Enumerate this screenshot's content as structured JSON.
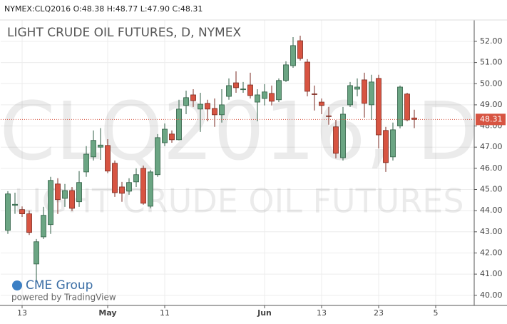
{
  "chart_data": {
    "type": "candlestick",
    "header": "NYMEX:CLQ2016 O:48.38 H:48.77 L:47.90 C:48.31",
    "title": "LIGHT CRUDE OIL FUTURES, D, NYMEX",
    "watermark": "CLQ2016, D",
    "watermark_subtitle": "LIGHT CRUDE OIL FUTURES",
    "brand": "CME Group",
    "powered_by": "powered by TradingView",
    "up_color": "#6ba583",
    "down_color": "#d75442",
    "grid": true,
    "open": [
      43.07,
      44.25,
      44.05,
      43.85,
      41.48,
      42.76,
      43.34,
      45.26,
      44.58,
      44.95,
      44.42,
      45.83,
      46.54,
      47.0,
      47.08,
      46.24,
      45.12,
      44.92,
      45.36,
      46.0,
      44.21,
      45.7,
      47.21,
      47.62,
      47.35,
      48.97,
      49.47,
      48.8,
      49.07,
      48.83,
      48.53,
      49.4,
      50.04,
      49.73,
      49.94,
      49.13,
      49.3,
      49.54,
      49.24,
      50.15,
      50.85,
      52.03,
      51.02,
      49.52,
      49.13,
      48.48,
      47.96,
      46.5,
      49.0,
      49.74,
      50.18,
      49.0,
      50.25,
      47.79,
      46.54,
      48.0,
      49.51,
      48.38
    ],
    "high": [
      44.92,
      44.85,
      44.2,
      44.0,
      42.66,
      44.18,
      45.6,
      45.53,
      45.26,
      45.12,
      45.87,
      47.05,
      47.79,
      47.9,
      47.38,
      46.37,
      45.36,
      45.53,
      46.0,
      46.13,
      45.93,
      47.62,
      48.12,
      47.79,
      49.24,
      49.67,
      49.74,
      49.57,
      49.24,
      49.3,
      49.74,
      50.25,
      50.58,
      50.08,
      50.52,
      49.74,
      49.98,
      49.91,
      50.25,
      51.06,
      52.2,
      52.27,
      51.16,
      49.91,
      49.3,
      48.9,
      48.29,
      48.9,
      50.08,
      50.25,
      50.52,
      50.42,
      50.42,
      47.96,
      48.16,
      49.91,
      49.57,
      48.77
    ],
    "low": [
      42.9,
      43.85,
      43.7,
      42.85,
      40.64,
      42.66,
      42.9,
      43.84,
      44.18,
      43.98,
      44.18,
      45.6,
      46.37,
      46.4,
      45.77,
      44.65,
      44.42,
      44.75,
      45.12,
      44.28,
      44.11,
      45.6,
      47.05,
      47.21,
      47.32,
      48.56,
      48.9,
      47.72,
      48.22,
      47.96,
      48.16,
      49.24,
      49.57,
      49.57,
      49.3,
      48.22,
      48.97,
      48.97,
      49.13,
      50.08,
      50.75,
      51.09,
      49.4,
      48.73,
      48.56,
      48.06,
      46.47,
      46.37,
      48.9,
      49.4,
      48.4,
      48.29,
      46.94,
      45.83,
      46.37,
      47.89,
      48.22,
      47.9
    ],
    "close": [
      44.79,
      44.3,
      43.85,
      42.97,
      42.53,
      43.78,
      45.43,
      44.52,
      44.95,
      44.11,
      45.33,
      46.67,
      47.32,
      47.1,
      45.87,
      44.85,
      44.82,
      45.33,
      45.7,
      44.35,
      45.83,
      47.45,
      47.85,
      47.35,
      48.8,
      49.34,
      49.2,
      49.03,
      48.8,
      48.53,
      49.0,
      49.91,
      49.81,
      49.75,
      49.44,
      49.47,
      49.61,
      49.17,
      50.15,
      50.89,
      51.8,
      51.19,
      49.64,
      49.5,
      48.97,
      48.46,
      46.71,
      48.56,
      49.91,
      49.84,
      49.07,
      50.08,
      47.58,
      46.27,
      47.82,
      49.84,
      48.29,
      48.31
    ],
    "xlim": [
      -1,
      65.4
    ],
    "xticks": [
      {
        "value": 2,
        "label": "13"
      },
      {
        "value": 14,
        "label": "May"
      },
      {
        "value": 22,
        "label": "11"
      },
      {
        "value": 36,
        "label": "Jun"
      },
      {
        "value": 44,
        "label": "13"
      },
      {
        "value": 52,
        "label": "23"
      },
      {
        "value": 60,
        "label": "5"
      }
    ],
    "ylim": [
      39.52,
      53.01
    ],
    "yticks": [
      {
        "value": 40,
        "label": "40.00"
      },
      {
        "value": 41,
        "label": "41.00"
      },
      {
        "value": 42,
        "label": "42.00"
      },
      {
        "value": 43,
        "label": "43.00"
      },
      {
        "value": 44,
        "label": "44.00"
      },
      {
        "value": 45,
        "label": "45.00"
      },
      {
        "value": 46,
        "label": "46.00"
      },
      {
        "value": 47,
        "label": "47.00"
      },
      {
        "value": 48,
        "label": "48.00"
      },
      {
        "value": 49,
        "label": "49.00"
      },
      {
        "value": 50,
        "label": "50.00"
      },
      {
        "value": 51,
        "label": "51.00"
      },
      {
        "value": 52,
        "label": "52.00"
      }
    ],
    "last_price": {
      "value": 48.31,
      "label": "48.31"
    }
  }
}
